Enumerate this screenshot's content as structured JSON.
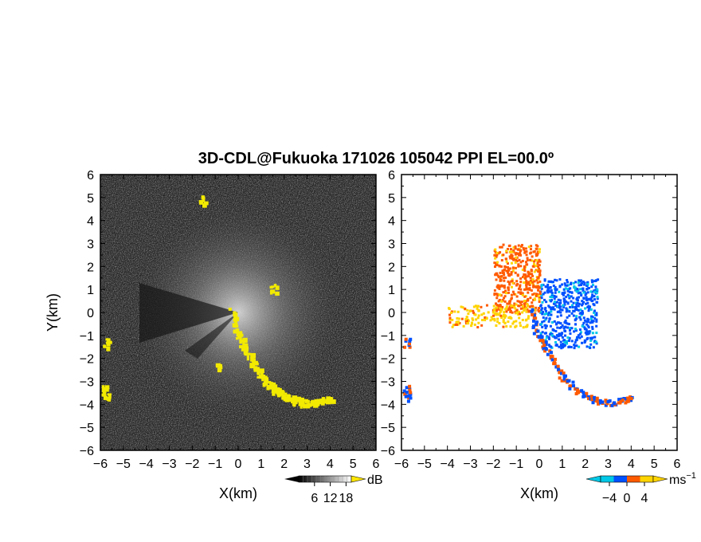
{
  "title": "3D-CDL@Fukuoka 171026 105042 PPI EL=00.0º",
  "chart_data": [
    {
      "type": "heatmap",
      "panel": "left",
      "title": "",
      "xlabel": "X(km)",
      "ylabel": "Y(km)",
      "xlim": [
        -6,
        6
      ],
      "ylim": [
        -6,
        6
      ],
      "xticks": [
        "−6",
        "−5",
        "−4",
        "−3",
        "−2",
        "−1",
        "0",
        "1",
        "2",
        "3",
        "4",
        "5",
        "6"
      ],
      "yticks": [
        "6",
        "5",
        "4",
        "3",
        "2",
        "1",
        "0",
        "−1",
        "−2",
        "−3",
        "−4",
        "−5",
        "−6"
      ],
      "colorbar": {
        "ticks": [
          "6",
          "12",
          "18"
        ],
        "tick_values": [
          6,
          12,
          18
        ],
        "range": [
          0,
          20
        ],
        "unit": "dB"
      },
      "colors": {
        "background": "#2a2a2a",
        "echo": "#f2ea00"
      },
      "echo_path": [
        [
          -0.3,
          0.1
        ],
        [
          -0.2,
          -0.7
        ],
        [
          0.2,
          -1.4
        ],
        [
          0.6,
          -2.2
        ],
        [
          1.0,
          -2.8
        ],
        [
          1.5,
          -3.3
        ],
        [
          2.0,
          -3.6
        ],
        [
          2.5,
          -3.8
        ],
        [
          3.0,
          -3.9
        ],
        [
          3.6,
          -3.8
        ],
        [
          4.0,
          -3.7
        ]
      ],
      "echo_blobs": [
        [
          -5.8,
          -1.3
        ],
        [
          -5.8,
          -3.3
        ],
        [
          -5.8,
          -3.6
        ],
        [
          -1.6,
          4.9
        ],
        [
          1.5,
          1.1
        ],
        [
          -0.9,
          -2.4
        ]
      ]
    },
    {
      "type": "heatmap",
      "panel": "right",
      "title": "",
      "xlabel": "X(km)",
      "ylabel": "",
      "xlim": [
        -6,
        6
      ],
      "ylim": [
        -6,
        6
      ],
      "xticks": [
        "−6",
        "−5",
        "−4",
        "−3",
        "−2",
        "−1",
        "0",
        "1",
        "2",
        "3",
        "4",
        "5",
        "6"
      ],
      "yticks": [
        "6",
        "5",
        "4",
        "3",
        "2",
        "1",
        "0",
        "−1",
        "−2",
        "−3",
        "−4",
        "−5",
        "−6"
      ],
      "colorbar": {
        "ticks": [
          "−4",
          "0",
          "4"
        ],
        "tick_values": [
          -4,
          0,
          4
        ],
        "range": [
          -6,
          6
        ],
        "unit": "ms"
      },
      "colors": {
        "negative_far": "#00c8e6",
        "negative": "#0050ff",
        "zero": "#ffffff",
        "positive": "#ff5a00",
        "positive_far": "#ffd400"
      },
      "approaching_region": {
        "x_range": [
          0,
          2.5
        ],
        "y_range": [
          -1.5,
          1.5
        ],
        "velocity": -3
      },
      "receding_region": {
        "x_range": [
          -2,
          0
        ],
        "y_range": [
          0,
          3
        ],
        "velocity": 3
      },
      "fast_region": {
        "x_range": [
          -4,
          -0.5
        ],
        "y_range": [
          -0.6,
          0.4
        ],
        "velocity": 5
      }
    }
  ]
}
